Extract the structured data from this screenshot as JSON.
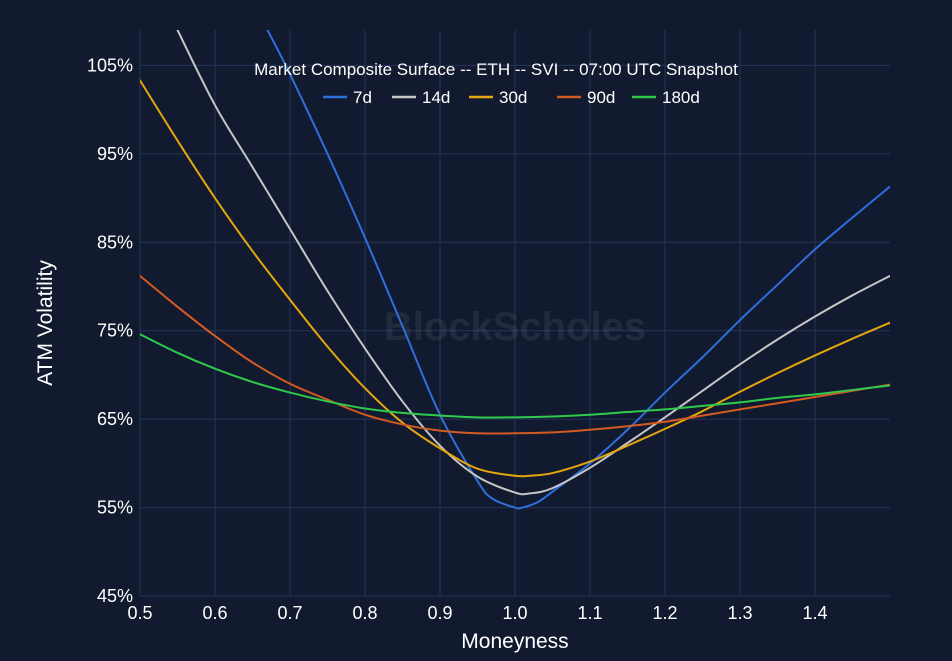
{
  "colors": {
    "background": "#111a2e",
    "grid": "#25355a",
    "text": "#ffffff"
  },
  "watermark": "BlockScholes",
  "chart_data": {
    "type": "line",
    "title": "Market Composite Surface -- ETH -- SVI -- 07:00 UTC Snapshot",
    "xlabel": "Moneyness",
    "ylabel": "ATM Volatility",
    "xlim": [
      0.5,
      1.5
    ],
    "ylim": [
      45,
      109
    ],
    "x_ticks": [
      0.5,
      0.6,
      0.7,
      0.8,
      0.9,
      1.0,
      1.1,
      1.2,
      1.3,
      1.4
    ],
    "x_tick_labels": [
      "0.5",
      "0.6",
      "0.7",
      "0.8",
      "0.9",
      "1.0",
      "1.1",
      "1.2",
      "1.3",
      "1.4"
    ],
    "y_ticks": [
      45,
      55,
      65,
      75,
      85,
      95,
      105
    ],
    "y_tick_labels": [
      "45%",
      "55%",
      "65%",
      "75%",
      "85%",
      "95%",
      "105%"
    ],
    "grid": true,
    "legend_position": "top",
    "series": [
      {
        "name": "7d",
        "color": "#2f6fdc",
        "x": [
          0.67,
          0.7,
          0.75,
          0.8,
          0.85,
          0.9,
          0.95,
          0.97,
          1.0,
          1.01,
          1.03,
          1.05,
          1.1,
          1.15,
          1.2,
          1.25,
          1.3,
          1.35,
          1.4,
          1.45,
          1.5
        ],
        "y": [
          109,
          104,
          95,
          85.5,
          75.5,
          65.5,
          58,
          56,
          55,
          55,
          55.6,
          56.8,
          60,
          63.8,
          68,
          72,
          76.2,
          80.2,
          84.2,
          87.8,
          91.3
        ]
      },
      {
        "name": "14d",
        "color": "#c6c6c6",
        "x": [
          0.55,
          0.6,
          0.65,
          0.7,
          0.75,
          0.8,
          0.85,
          0.9,
          0.95,
          1.0,
          1.02,
          1.05,
          1.1,
          1.15,
          1.2,
          1.25,
          1.3,
          1.35,
          1.4,
          1.45,
          1.5
        ],
        "y": [
          109,
          100.5,
          93.5,
          86.5,
          79.5,
          73,
          67,
          62,
          58.5,
          56.7,
          56.6,
          57.2,
          59.5,
          62.3,
          65.2,
          68.2,
          71.2,
          74,
          76.6,
          79,
          81.2
        ]
      },
      {
        "name": "30d",
        "color": "#e4a60e",
        "x": [
          0.5,
          0.55,
          0.6,
          0.65,
          0.7,
          0.75,
          0.8,
          0.85,
          0.9,
          0.95,
          1.0,
          1.02,
          1.05,
          1.1,
          1.15,
          1.2,
          1.25,
          1.3,
          1.35,
          1.4,
          1.45,
          1.5
        ],
        "y": [
          103.3,
          96.5,
          90,
          84,
          78.5,
          73.2,
          68.5,
          64.6,
          61.7,
          59.4,
          58.6,
          58.6,
          58.9,
          60.2,
          62,
          63.9,
          65.9,
          68.1,
          70.2,
          72.2,
          74.1,
          75.9
        ]
      },
      {
        "name": "90d",
        "color": "#d45a22",
        "x": [
          0.5,
          0.55,
          0.6,
          0.65,
          0.7,
          0.75,
          0.8,
          0.85,
          0.9,
          0.95,
          1.0,
          1.05,
          1.1,
          1.15,
          1.2,
          1.25,
          1.3,
          1.35,
          1.4,
          1.45,
          1.5
        ],
        "y": [
          81.2,
          77.7,
          74.4,
          71.4,
          69,
          67.2,
          65.5,
          64.4,
          63.7,
          63.4,
          63.4,
          63.5,
          63.8,
          64.2,
          64.7,
          65.4,
          66.1,
          66.8,
          67.5,
          68.2,
          68.9
        ]
      },
      {
        "name": "180d",
        "color": "#2fc94b",
        "x": [
          0.5,
          0.55,
          0.6,
          0.65,
          0.7,
          0.75,
          0.8,
          0.85,
          0.9,
          0.95,
          1.0,
          1.05,
          1.1,
          1.15,
          1.2,
          1.25,
          1.3,
          1.35,
          1.4,
          1.45,
          1.5
        ],
        "y": [
          74.6,
          72.5,
          70.7,
          69.2,
          68,
          67,
          66.2,
          65.7,
          65.4,
          65.2,
          65.2,
          65.3,
          65.5,
          65.8,
          66.1,
          66.5,
          66.9,
          67.4,
          67.8,
          68.3,
          68.8
        ]
      }
    ]
  }
}
